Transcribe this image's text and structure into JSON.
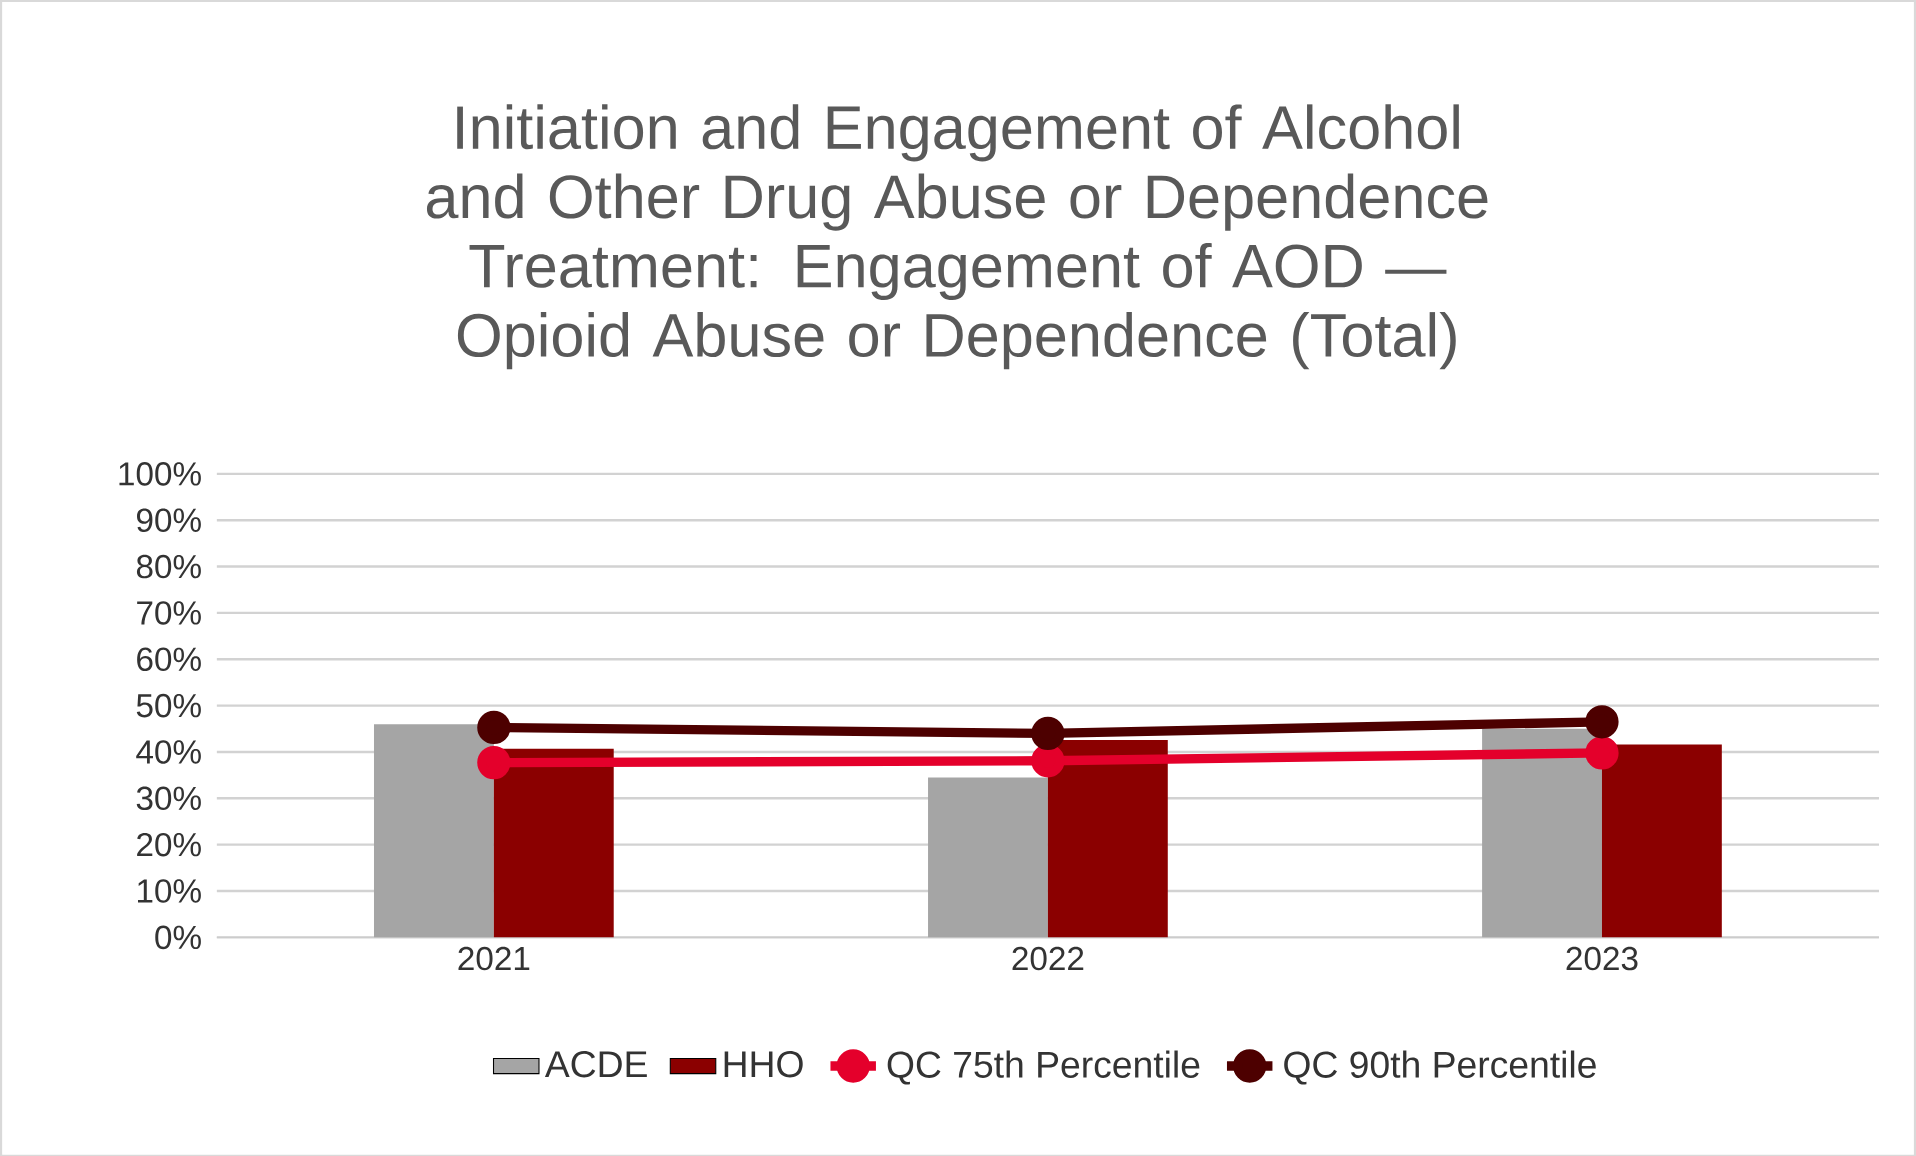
{
  "chart_data": {
    "type": "bar",
    "title": "Initiation and Engagement of Alcohol and Other Drug Abuse or Dependence Treatment: Engagement of AOD — Opioid Abuse or Dependence (Total)",
    "categories": [
      "2021",
      "2022",
      "2023"
    ],
    "series": [
      {
        "name": "ACDE",
        "color": "#a5a5a5",
        "values": [
          46,
          34.5,
          45
        ]
      },
      {
        "name": "HHO",
        "color": "#8b0000",
        "values": [
          40.7,
          42.6,
          41.6
        ]
      },
      {
        "name": "QC 75th Percentile",
        "type": "line",
        "color": "#e4002b",
        "values": [
          37.7,
          38.1,
          39.8
        ]
      },
      {
        "name": "QC 90th Percentile",
        "type": "line",
        "color": "#4d0000",
        "values": [
          45.3,
          44,
          46.5
        ]
      }
    ],
    "ylim": [
      0,
      100
    ],
    "yticks": [
      {
        "value": 0,
        "label": "0%"
      },
      {
        "value": 10,
        "label": "10%"
      },
      {
        "value": 20,
        "label": "20%"
      },
      {
        "value": 30,
        "label": "30%"
      },
      {
        "value": 40,
        "label": "40%"
      },
      {
        "value": 50,
        "label": "50%"
      },
      {
        "value": 60,
        "label": "60%"
      },
      {
        "value": 70,
        "label": "70%"
      },
      {
        "value": 80,
        "label": "80%"
      },
      {
        "value": 90,
        "label": "90%"
      },
      {
        "value": 100,
        "label": "100%"
      }
    ],
    "grid": "y",
    "legend": "bottom",
    "marker": "circle"
  }
}
